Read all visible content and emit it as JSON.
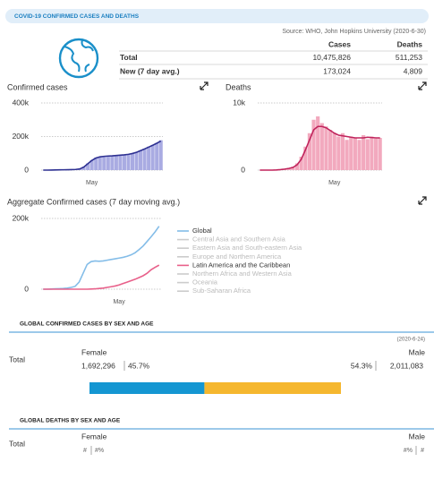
{
  "header": {
    "title": "COVID-19 CONFIRMED CASES AND DEATHS",
    "source": "Source: WHO, John Hopkins University (2020-6-30)"
  },
  "table": {
    "columns": [
      "Cases",
      "Deaths"
    ],
    "rows": [
      [
        "Total",
        "10,475,826",
        "511,253"
      ],
      [
        "New (7 day avg.)",
        "173,024",
        "4,809"
      ]
    ]
  },
  "chart_data": [
    {
      "type": "combo",
      "title": "Confirmed cases",
      "categories": [
        null,
        null,
        null,
        null,
        null,
        null,
        null,
        null,
        null,
        null,
        null,
        null,
        "May",
        null,
        null,
        null,
        null,
        null,
        null,
        null,
        null,
        null,
        null,
        null,
        null,
        null,
        null,
        null,
        null,
        null
      ],
      "series": [
        {
          "type": "bar",
          "color": "#a9abe2",
          "values": [
            0,
            0,
            500,
            1000,
            1500,
            2000,
            2500,
            3000,
            4000,
            8000,
            20000,
            40000,
            60000,
            75000,
            80000,
            82000,
            85000,
            85000,
            88000,
            90000,
            92000,
            95000,
            100000,
            108000,
            118000,
            128000,
            140000,
            150000,
            162000,
            178000
          ]
        },
        {
          "type": "line",
          "color": "#2e3192",
          "values": [
            0,
            0,
            500,
            1000,
            1500,
            2000,
            2500,
            3000,
            4000,
            7000,
            18000,
            38000,
            58000,
            72000,
            79000,
            82000,
            84000,
            85000,
            87000,
            89000,
            91000,
            94000,
            99000,
            106000,
            116000,
            126000,
            137000,
            148000,
            160000,
            173000
          ]
        }
      ],
      "ylim": [
        0,
        400000
      ],
      "yticks": [
        0,
        {
          "value": 200000,
          "label": "200k"
        },
        {
          "value": 400000,
          "label": "400k"
        }
      ],
      "grid": true
    },
    {
      "type": "combo",
      "title": "Deaths",
      "categories": [
        null,
        null,
        null,
        null,
        null,
        null,
        null,
        null,
        null,
        null,
        null,
        null,
        null,
        null,
        null,
        null,
        null,
        null,
        "May",
        null,
        null,
        null,
        null,
        null,
        null,
        null,
        null,
        null,
        null,
        null
      ],
      "series": [
        {
          "type": "bar",
          "color": "#f2a9be",
          "values": [
            0,
            0,
            0,
            0,
            50,
            100,
            200,
            300,
            500,
            1000,
            2000,
            3500,
            5500,
            7500,
            8000,
            7000,
            6500,
            6000,
            5500,
            5000,
            5500,
            4500,
            5000,
            4800,
            4500,
            5200,
            4600,
            5000,
            4700,
            4800
          ]
        },
        {
          "type": "line",
          "color": "#c0245c",
          "values": [
            0,
            0,
            0,
            0,
            30,
            80,
            150,
            250,
            400,
            800,
            1600,
            3000,
            4500,
            6000,
            6500,
            6500,
            6300,
            5900,
            5500,
            5200,
            5100,
            5000,
            4900,
            4800,
            4800,
            4800,
            4900,
            4850,
            4800,
            4800
          ]
        }
      ],
      "ylim": [
        0,
        10000
      ],
      "yticks": [
        0,
        {
          "value": 10000,
          "label": "10k"
        }
      ],
      "grid": true
    },
    {
      "type": "line",
      "title": "Aggregate Confirmed cases (7 day moving avg.)",
      "categories": [
        null,
        null,
        null,
        null,
        null,
        null,
        null,
        null,
        null,
        null,
        null,
        null,
        null,
        null,
        null,
        null,
        null,
        null,
        null,
        "May",
        null,
        null,
        null,
        null,
        null,
        null,
        null,
        null,
        null,
        null
      ],
      "series": [
        {
          "name": "Global",
          "type": "line",
          "color": "#84bde8",
          "visible": true,
          "values": [
            0,
            0,
            500,
            1000,
            1500,
            2000,
            3000,
            5000,
            8000,
            20000,
            45000,
            70000,
            78000,
            80000,
            79000,
            80000,
            82000,
            84000,
            86000,
            88000,
            90000,
            93000,
            97000,
            103000,
            112000,
            122000,
            135000,
            148000,
            162000,
            178000
          ]
        },
        {
          "name": "Central Asia and Southern Asia",
          "type": "line",
          "color": "#cccccc",
          "visible": false
        },
        {
          "name": "Eastern Asia and South-eastern Asia",
          "type": "line",
          "color": "#cccccc",
          "visible": false
        },
        {
          "name": "Europe and Northern America",
          "type": "line",
          "color": "#cccccc",
          "visible": false
        },
        {
          "name": "Latin America and the Caribbean",
          "type": "line",
          "color": "#e8608a",
          "visible": true,
          "values": [
            0,
            0,
            0,
            0,
            0,
            0,
            0,
            0,
            0,
            0,
            0,
            0,
            500,
            1000,
            2000,
            3000,
            5000,
            7000,
            9000,
            12000,
            16000,
            20000,
            24000,
            28000,
            33000,
            38000,
            45000,
            55000,
            62000,
            68000
          ]
        },
        {
          "name": "Northern Africa and Western Asia",
          "type": "line",
          "color": "#cccccc",
          "visible": false
        },
        {
          "name": "Oceania",
          "type": "line",
          "color": "#cccccc",
          "visible": false
        },
        {
          "name": "Sub-Saharan Africa",
          "type": "line",
          "color": "#cccccc",
          "visible": false
        }
      ],
      "ylim": [
        0,
        200000
      ],
      "yticks": [
        0,
        {
          "value": 200000,
          "label": "200k"
        }
      ],
      "grid": true,
      "legend": "right"
    }
  ],
  "cases_by_sex": {
    "title": "GLOBAL CONFIRMED CASES BY SEX AND AGE",
    "date": "(2020-6-24)",
    "row_label": "Total",
    "female": {
      "label": "Female",
      "count": "1,692,296",
      "percent": 45.7,
      "percent_label": "45.7%",
      "color": "#1496d2"
    },
    "male": {
      "label": "Male",
      "count": "2,011,083",
      "percent": 54.3,
      "percent_label": "54.3%",
      "color": "#f5b72f"
    }
  },
  "deaths_by_sex": {
    "title": "GLOBAL DEATHS BY SEX AND AGE",
    "row_label": "Total",
    "female": {
      "label": "Female",
      "count": "#",
      "percent_label": "#%"
    },
    "male": {
      "label": "Male",
      "count": "#",
      "percent_label": "#%"
    }
  }
}
